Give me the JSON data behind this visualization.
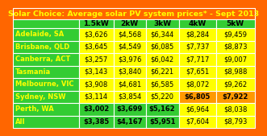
{
  "title": "Solar Choice: Average solar PV system prices* - Sept 2013",
  "columns": [
    "",
    "1.5kW",
    "2kW",
    "3kW",
    "4kW",
    "5kW"
  ],
  "rows": [
    {
      "location": "Adelaide, SA",
      "values": [
        "$3,626",
        "$4,568",
        "$6,344",
        "$8,284",
        "$9,459"
      ],
      "colors": [
        "#ffff00",
        "#ffff00",
        "#ffff00",
        "#ffff00",
        "#ffff00"
      ]
    },
    {
      "location": "Brisbane, QLD",
      "values": [
        "$3,645",
        "$4,549",
        "$6,085",
        "$7,737",
        "$8,873"
      ],
      "colors": [
        "#ffff00",
        "#ffff00",
        "#ffff00",
        "#ffff00",
        "#ffff00"
      ]
    },
    {
      "location": "Canberra, ACT",
      "values": [
        "$3,257",
        "$3,976",
        "$6,042",
        "$7,717",
        "$9,007"
      ],
      "colors": [
        "#ffff00",
        "#ffff00",
        "#ffff00",
        "#ffff00",
        "#ffff00"
      ]
    },
    {
      "location": "Tasmania",
      "values": [
        "$3,143",
        "$3,840",
        "$6,221",
        "$7,651",
        "$8,988"
      ],
      "colors": [
        "#ffff00",
        "#ffff00",
        "#ffff00",
        "#ffff00",
        "#ffff00"
      ]
    },
    {
      "location": "Melbourne, VIC",
      "values": [
        "$3,908",
        "$4,681",
        "$6,585",
        "$8,072",
        "$9,262"
      ],
      "colors": [
        "#ffff00",
        "#ffff00",
        "#ffff00",
        "#ffff00",
        "#ffff00"
      ]
    },
    {
      "location": "Sydney, NSW",
      "values": [
        "$3,114",
        "$3,854",
        "$5,220",
        "$6,805",
        "$7,922"
      ],
      "colors": [
        "#ffff00",
        "#ffff00",
        "#ffff00",
        "#ff9900",
        "#ff9900"
      ]
    },
    {
      "location": "Perth, WA",
      "values": [
        "$3,002",
        "$3,699",
        "$5,162",
        "$6,964",
        "$8,038"
      ],
      "colors": [
        "#33cc33",
        "#33cc33",
        "#33cc33",
        "#ffff00",
        "#ffff00"
      ]
    },
    {
      "location": "All",
      "values": [
        "$3,385",
        "$4,167",
        "$5,951",
        "$7,604",
        "$8,793"
      ],
      "colors": [
        "#33cc33",
        "#33cc33",
        "#33cc33",
        "#ffff00",
        "#ffff00"
      ]
    }
  ],
  "bold_cells": {
    "Sydney, NSW": [
      3,
      4
    ],
    "Perth, WA": [
      0,
      1,
      2
    ],
    "All": [
      0,
      1,
      2
    ]
  },
  "header_bg": "#ff6600",
  "header_text_color": "#ffff00",
  "col_header_bg": "#33cc33",
  "location_bg": "#33cc33",
  "location_text": "#ffff00",
  "title_fontsize": 6.8,
  "cell_fontsize": 6.0,
  "header_fontsize": 6.5
}
